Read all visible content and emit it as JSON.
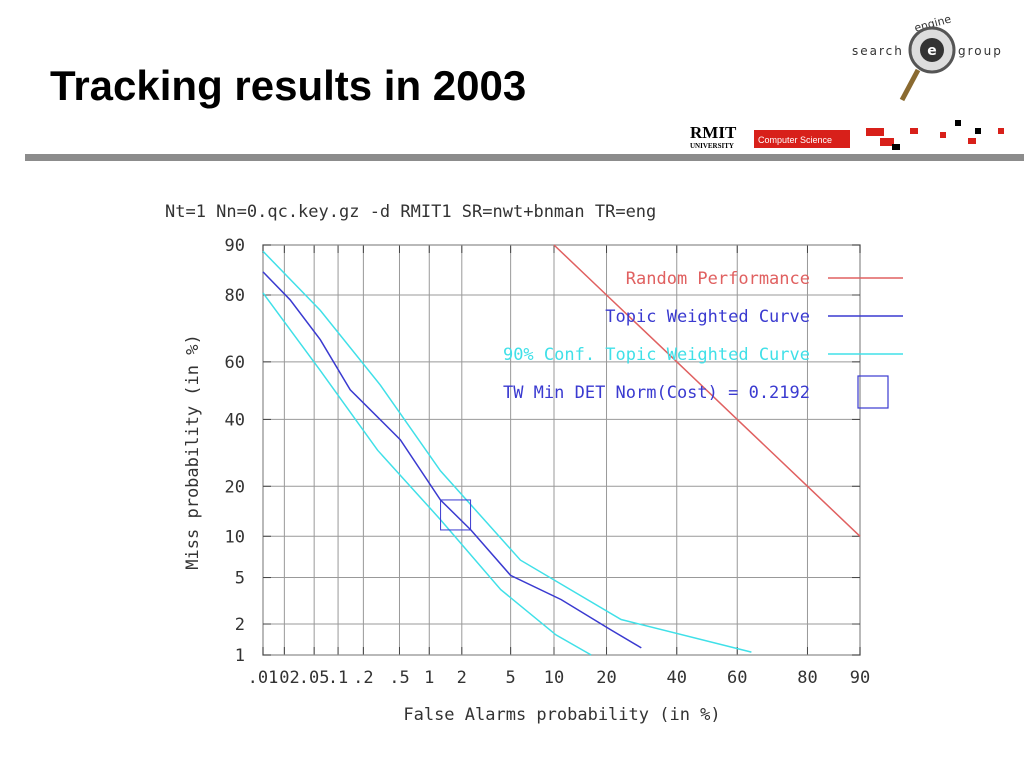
{
  "slide": {
    "title": "Tracking results in 2003",
    "logo": {
      "left": "search",
      "right": "group",
      "arc": "engine",
      "badge": "e",
      "org": "RMIT",
      "org_sub": "UNIVERSITY",
      "dept": "Computer Science"
    }
  },
  "chart_data": {
    "type": "line",
    "scale": "probit",
    "title": "Nt=1 Nn=0.qc.key.gz -d RMIT1 SR=nwt+bnman TR=eng",
    "x_label": "False Alarms probability (in %)",
    "y_label": "Miss probability (in %)",
    "xlim": [
      0.01,
      90
    ],
    "ylim": [
      1,
      90
    ],
    "xticks": [
      {
        "value": 0.01,
        "label": ".01"
      },
      {
        "value": 0.02,
        "label": ".02"
      },
      {
        "value": 0.05,
        "label": ".05"
      },
      {
        "value": 0.1,
        "label": ".1"
      },
      {
        "value": 0.2,
        "label": ".2"
      },
      {
        "value": 0.5,
        "label": ".5"
      },
      1,
      2,
      5,
      10,
      20,
      40,
      60,
      80,
      90
    ],
    "yticks": [
      1,
      2,
      5,
      10,
      20,
      40,
      60,
      80,
      90
    ],
    "grid": true,
    "series": [
      {
        "name": "Random Performance",
        "color": "#e06060",
        "x": [
          10,
          20,
          40,
          60,
          80,
          90
        ],
        "values": [
          90,
          80,
          60,
          40,
          20,
          10
        ]
      },
      {
        "name": "Topic Weighted Curve",
        "color": "#3a3ad0",
        "x": [
          0.01,
          0.024,
          0.06,
          0.14,
          0.51,
          1.28,
          2.4,
          5,
          11.1,
          21.1,
          29.1
        ],
        "values": [
          85.2,
          78.8,
          67.3,
          50.3,
          33.3,
          16.8,
          11,
          5.2,
          3.3,
          1.76,
          1.18
        ]
      },
      {
        "name": "90% Conf. Topic Weighted Curve",
        "color": "#40e0e8",
        "x": [
          0.01,
          0.06,
          0.31,
          1.28,
          5.9,
          23.6,
          64.5
        ],
        "values": [
          89,
          76,
          52,
          24,
          6.8,
          2.2,
          1.07
        ]
      },
      {
        "name": null,
        "color": "#40e0e8",
        "x": [
          0.01,
          0.06,
          0.29,
          1.28,
          4.2,
          10.3,
          16.6
        ],
        "values": [
          80.5,
          57,
          30,
          12.8,
          4,
          1.58,
          1
        ]
      }
    ],
    "min_det": {
      "label": "TW Min DET Norm(Cost) = 0.2192",
      "x": 1.76,
      "y": 13.7,
      "color": "#3a3ad0"
    }
  }
}
